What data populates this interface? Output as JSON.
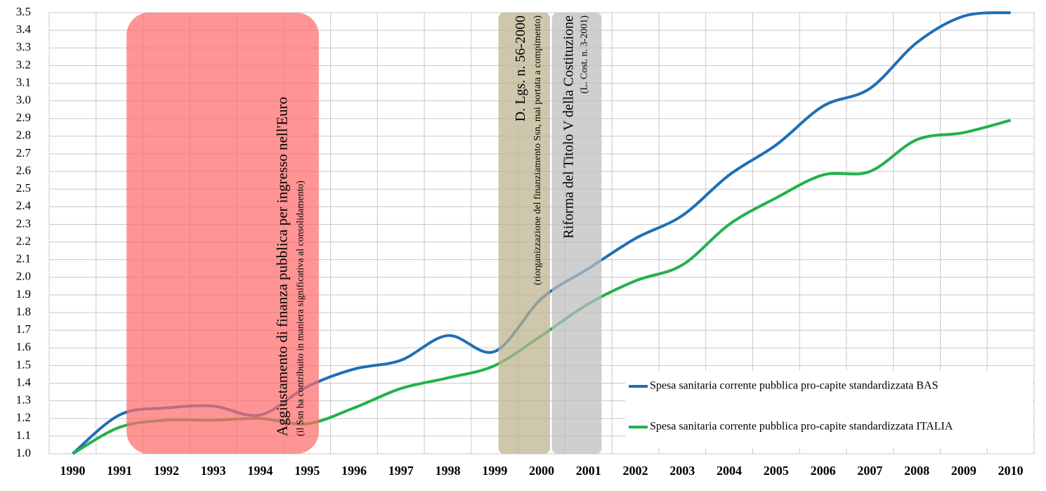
{
  "chart_data": {
    "type": "line",
    "categories": [
      "1990",
      "1991",
      "1992",
      "1993",
      "1994",
      "1995",
      "1996",
      "1997",
      "1998",
      "1999",
      "2000",
      "2001",
      "2002",
      "2003",
      "2004",
      "2005",
      "2006",
      "2007",
      "2008",
      "2009",
      "2010"
    ],
    "series": [
      {
        "name": "Spesa sanitaria corrente pubblica pro-capite standardizzata BAS",
        "color": "#1f6fb5",
        "values": [
          1.0,
          1.22,
          1.26,
          1.27,
          1.22,
          1.38,
          1.48,
          1.53,
          1.67,
          1.58,
          1.88,
          2.05,
          2.22,
          2.35,
          2.58,
          2.75,
          2.97,
          3.07,
          3.33,
          3.48,
          3.5
        ]
      },
      {
        "name": "Spesa sanitaria corrente pubblica pro-capite standardizzata ITALIA",
        "color": "#22b14c",
        "values": [
          1.0,
          1.15,
          1.19,
          1.19,
          1.2,
          1.17,
          1.26,
          1.37,
          1.43,
          1.5,
          1.67,
          1.85,
          1.98,
          2.07,
          2.3,
          2.45,
          2.58,
          2.6,
          2.78,
          2.82,
          2.89
        ]
      }
    ],
    "ylim": [
      1.0,
      3.5
    ],
    "yticks": [
      {
        "value": 1.0,
        "label": "1.0"
      },
      1.1,
      1.2,
      1.3,
      1.4,
      1.5,
      1.6,
      1.7,
      1.8,
      1.9,
      {
        "value": 2.0,
        "label": "2.0"
      },
      2.1,
      2.2,
      2.3,
      2.4,
      2.5,
      2.6,
      2.7,
      2.8,
      2.9,
      {
        "value": 3.0,
        "label": "3.0"
      },
      3.1,
      3.2,
      3.3,
      3.4,
      3.5
    ],
    "grid": true,
    "annotations": [
      {
        "text": "Aggiustamento di finanza pubblica per ingresso nell'Euro",
        "subtext": "(il Ssn ha contribuito in maniera significativa al consolidamento)",
        "color": "#ff6b6b"
      },
      {
        "text": "D. Lgs. n. 56-2000",
        "subtext": "(riorganizzazione del finanziamento Ssn, mai portata a compimento)",
        "color": "#bcb18c"
      },
      {
        "text": "Riforma del Titolo V della Costituzione",
        "subtext": "(L. Cost. n. 3-2001)",
        "color": "#bdbdbd"
      }
    ]
  }
}
